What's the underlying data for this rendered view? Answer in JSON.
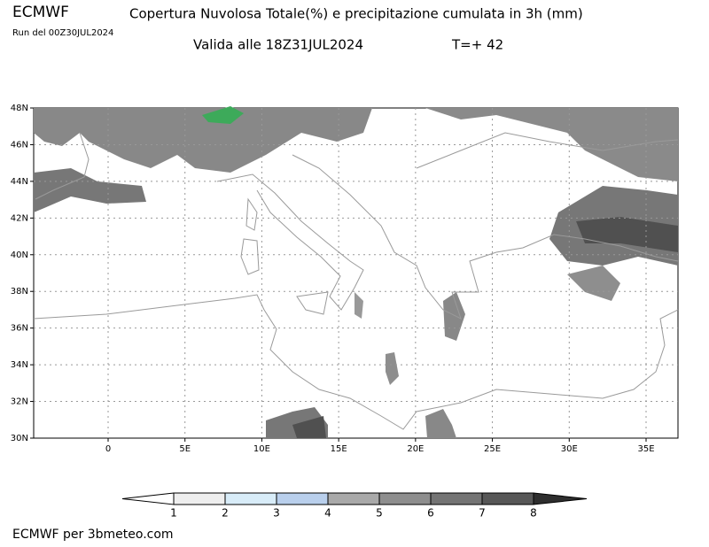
{
  "header": {
    "model": "ECMWF",
    "title": "Copertura Nuvolosa Totale(%) e precipitazione cumulata in 3h (mm)",
    "run": "Run del 00Z30JUL2024",
    "valid": "Valida alle 18Z31JUL2024",
    "step": "T=+ 42"
  },
  "map": {
    "lat_labels": [
      "48N",
      "46N",
      "44N",
      "42N",
      "40N",
      "38N",
      "36N",
      "34N",
      "32N",
      "30N"
    ],
    "lon_labels": [
      "0",
      "5E",
      "10E",
      "15E",
      "20E",
      "25E",
      "30E",
      "35E"
    ]
  },
  "legend": {
    "labels": [
      "1",
      "2",
      "3",
      "4",
      "5",
      "6",
      "7",
      "8"
    ],
    "colors": [
      "#ffffff",
      "#eeeeee",
      "#d8ecf8",
      "#b9cfec",
      "#a9a9a9",
      "#8e8e8e",
      "#747474",
      "#575757",
      "#2e2e2e"
    ]
  },
  "footer": "ECMWF per 3bmeteo.com"
}
